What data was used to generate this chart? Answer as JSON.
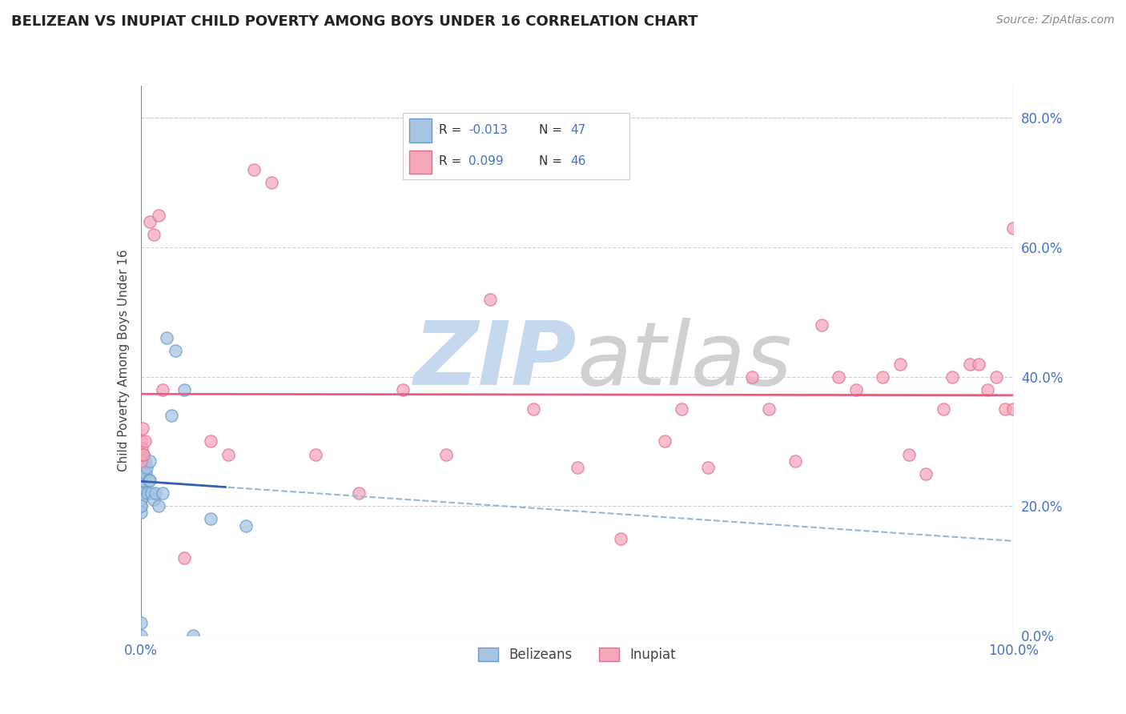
{
  "title": "BELIZEAN VS INUPIAT CHILD POVERTY AMONG BOYS UNDER 16 CORRELATION CHART",
  "source": "Source: ZipAtlas.com",
  "ylabel": "Child Poverty Among Boys Under 16",
  "belizean_color": "#a8c4e0",
  "belizean_edge": "#6699cc",
  "inupiat_color": "#f4a7b9",
  "inupiat_edge": "#e07090",
  "belizean_R": -0.013,
  "belizean_N": 47,
  "inupiat_R": 0.099,
  "inupiat_N": 46,
  "legend_label_1": "Belizeans",
  "legend_label_2": "Inupiat",
  "xlim": [
    0.0,
    1.0
  ],
  "ylim": [
    0.0,
    0.85
  ],
  "bg_color": "#ffffff",
  "grid_color": "#cccccc",
  "title_color": "#222222",
  "axis_label_color": "#444444",
  "tick_label_color": "#4472c4",
  "watermark_color_zip": "#c5d8ee",
  "watermark_color_atlas": "#d0d0d0",
  "bel_line_color": "#3060b0",
  "inu_line_color": "#e06080",
  "bel_dash_color": "#90b8d8",
  "belizean_x": [
    0.0,
    0.0,
    0.0,
    0.0,
    0.0,
    0.0,
    0.0,
    0.0,
    0.0,
    0.0,
    0.0,
    0.0,
    0.0,
    0.0,
    0.0,
    0.0,
    0.0,
    0.0,
    0.0,
    0.0,
    0.001,
    0.001,
    0.001,
    0.002,
    0.002,
    0.003,
    0.003,
    0.004,
    0.005,
    0.006,
    0.007,
    0.008,
    0.009,
    0.01,
    0.01,
    0.012,
    0.015,
    0.017,
    0.02,
    0.025,
    0.03,
    0.035,
    0.04,
    0.05,
    0.06,
    0.08,
    0.12
  ],
  "belizean_y": [
    0.28,
    0.27,
    0.26,
    0.25,
    0.24,
    0.23,
    0.22,
    0.21,
    0.2,
    0.19,
    0.27,
    0.26,
    0.25,
    0.24,
    0.23,
    0.22,
    0.21,
    0.2,
    0.0,
    0.02,
    0.28,
    0.27,
    0.26,
    0.27,
    0.25,
    0.28,
    0.24,
    0.26,
    0.27,
    0.25,
    0.26,
    0.22,
    0.24,
    0.27,
    0.24,
    0.22,
    0.21,
    0.22,
    0.2,
    0.22,
    0.46,
    0.34,
    0.44,
    0.38,
    0.0,
    0.18,
    0.17
  ],
  "inupiat_x": [
    0.0,
    0.0,
    0.0,
    0.001,
    0.002,
    0.003,
    0.005,
    0.01,
    0.015,
    0.02,
    0.025,
    0.05,
    0.08,
    0.1,
    0.13,
    0.15,
    0.2,
    0.25,
    0.3,
    0.35,
    0.4,
    0.45,
    0.5,
    0.55,
    0.6,
    0.62,
    0.65,
    0.7,
    0.72,
    0.75,
    0.78,
    0.8,
    0.82,
    0.85,
    0.87,
    0.88,
    0.9,
    0.92,
    0.93,
    0.95,
    0.96,
    0.97,
    0.98,
    0.99,
    1.0,
    1.0
  ],
  "inupiat_y": [
    0.27,
    0.3,
    0.28,
    0.29,
    0.32,
    0.28,
    0.3,
    0.64,
    0.62,
    0.65,
    0.38,
    0.12,
    0.3,
    0.28,
    0.72,
    0.7,
    0.28,
    0.22,
    0.38,
    0.28,
    0.52,
    0.35,
    0.26,
    0.15,
    0.3,
    0.35,
    0.26,
    0.4,
    0.35,
    0.27,
    0.48,
    0.4,
    0.38,
    0.4,
    0.42,
    0.28,
    0.25,
    0.35,
    0.4,
    0.42,
    0.42,
    0.38,
    0.4,
    0.35,
    0.63,
    0.35
  ]
}
